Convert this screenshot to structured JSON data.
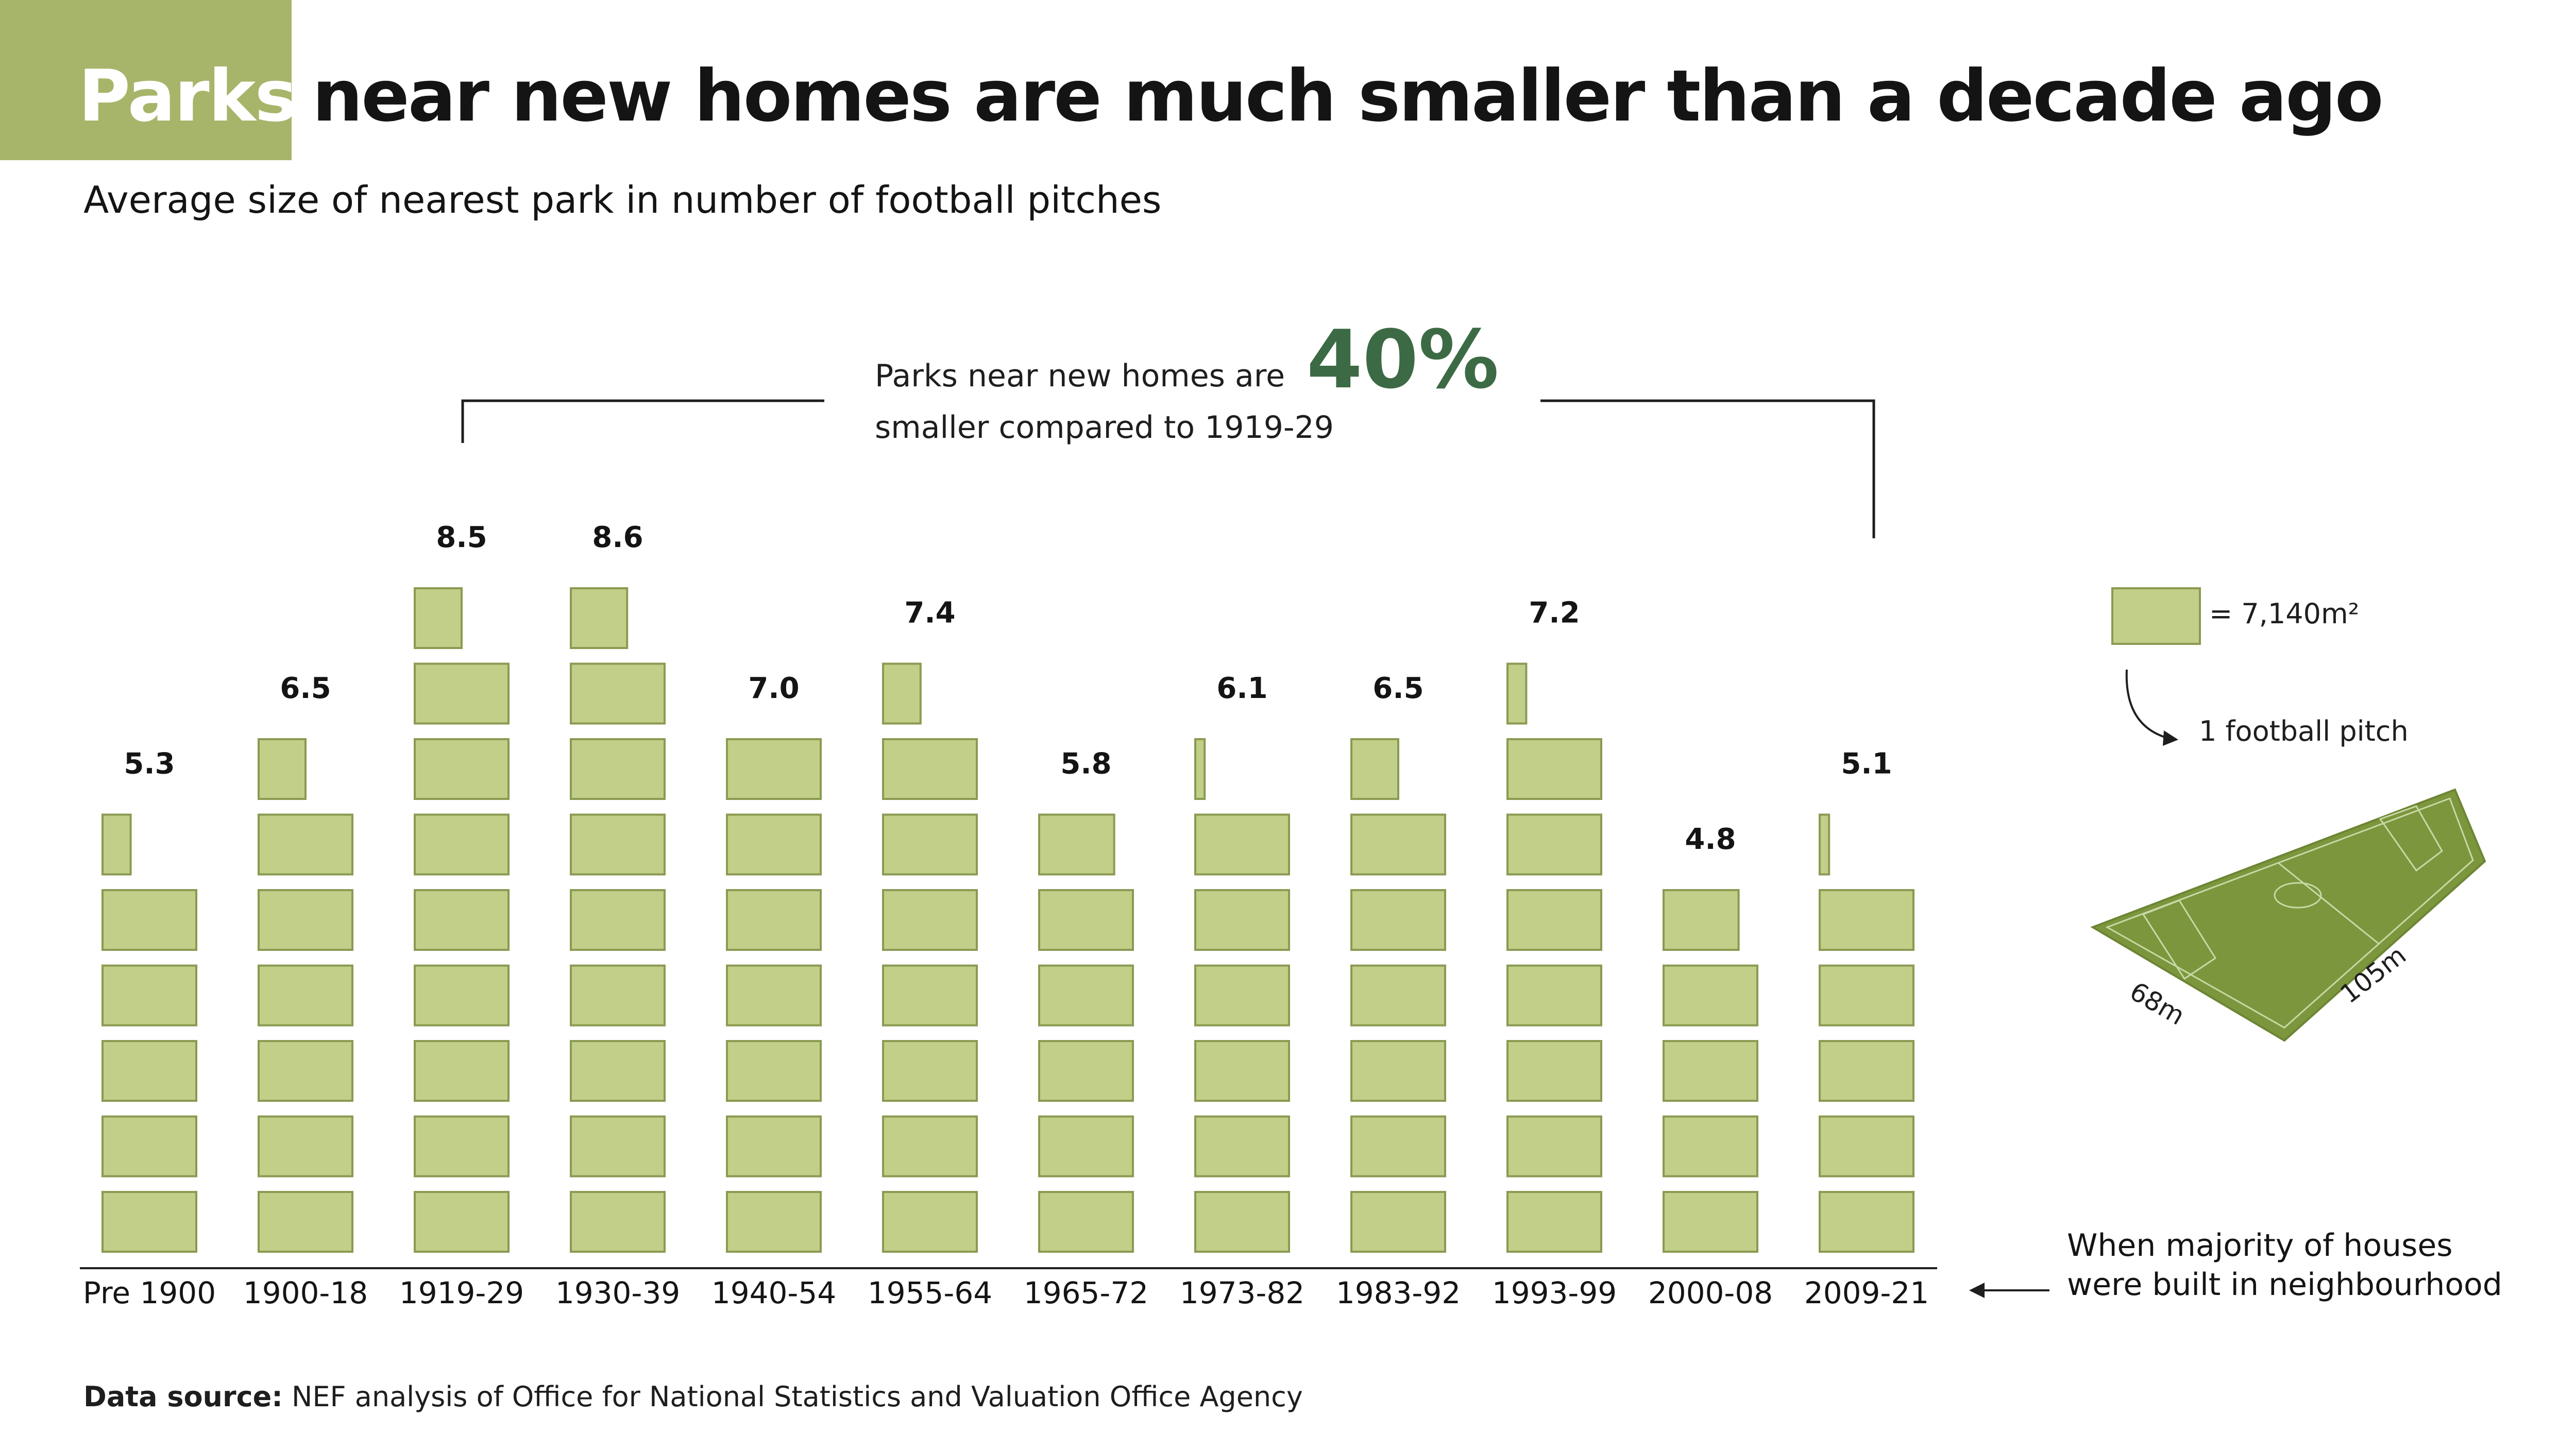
{
  "header": {
    "title_highlight": "Parks",
    "title_rest": "near new homes are much smaller than a decade ago",
    "subtitle": "Average size of nearest park in number of football pitches"
  },
  "callout": {
    "line1": "Parks near new homes are",
    "line2": "smaller compared to 1919-29",
    "percent": "40%"
  },
  "legend": {
    "unit_value": "= 7,140m²",
    "unit_label": "1 football pitch",
    "pitch_width": "68m",
    "pitch_length": "105m"
  },
  "note": {
    "line1": "When majority of houses",
    "line2": "were built in neighbourhood"
  },
  "source": {
    "label": "Data source:",
    "text": "NEF analysis of Office for National Statistics and Valuation Office Agency"
  },
  "colors": {
    "block_fill": "#c1cf88",
    "block_stroke": "#8a9a52",
    "title_box": "#a7b56a",
    "accent": "#3c6a44"
  },
  "chart_data": {
    "type": "bar",
    "unit": "football pitches",
    "categories": [
      "Pre 1900",
      "1900-18",
      "1919-29",
      "1930-39",
      "1940-54",
      "1955-64",
      "1965-72",
      "1973-82",
      "1983-92",
      "1993-99",
      "2000-08",
      "2009-21"
    ],
    "values": [
      5.3,
      6.5,
      8.5,
      8.6,
      7.0,
      7.4,
      5.8,
      6.1,
      6.5,
      7.2,
      4.8,
      5.1
    ],
    "value_labels": [
      "5.3",
      "6.5",
      "8.5",
      "8.6",
      "7.0",
      "7.4",
      "5.8",
      "6.1",
      "6.5",
      "7.2",
      "4.8",
      "5.1"
    ],
    "title": "Parks near new homes are much smaller than a decade ago",
    "subtitle": "Average size of nearest park in number of football pitches",
    "xlabel": "",
    "ylabel": "",
    "comparison": {
      "from": "1919-29",
      "to": "2009-21",
      "change": "40%"
    }
  }
}
